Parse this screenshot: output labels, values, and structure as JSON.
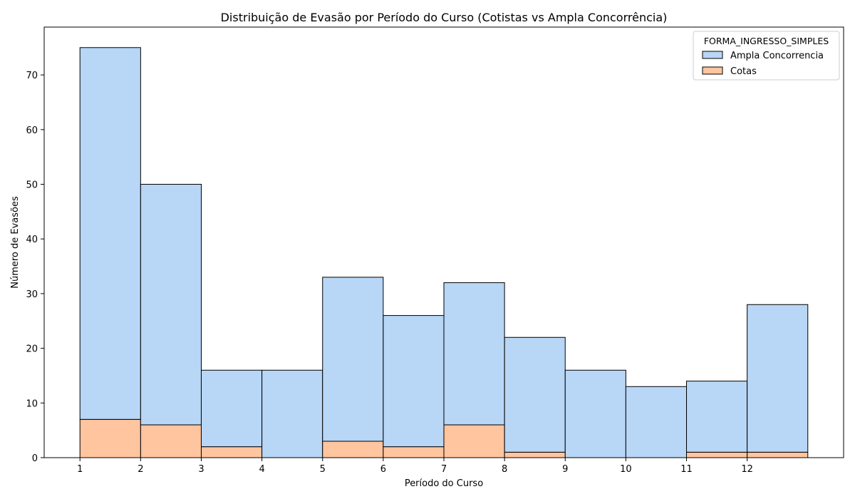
{
  "chart_data": {
    "type": "bar",
    "stacked": true,
    "title": "Distribuição de Evasão por Período do Curso (Cotistas vs Ampla Concorrência)",
    "xlabel": "Período do Curso",
    "ylabel": "Número de Evasões",
    "xlim": [
      0.41,
      13.59
    ],
    "ylim": [
      0,
      78.75
    ],
    "xticks": [
      1,
      2,
      3,
      4,
      5,
      6,
      7,
      8,
      9,
      10,
      11,
      12
    ],
    "yticks": [
      0,
      10,
      20,
      30,
      40,
      50,
      60,
      70
    ],
    "bin_edges": [
      1,
      2,
      3,
      4,
      5,
      6,
      7,
      8,
      9,
      10,
      11,
      12,
      13
    ],
    "grid": false,
    "legend": {
      "title": "FORMA_INGRESSO_SIMPLES",
      "placement": "top-right"
    },
    "series": [
      {
        "name": "Ampla Concorrencia",
        "color": "#b8d6f5",
        "values": [
          68,
          44,
          14,
          16,
          30,
          24,
          26,
          21,
          16,
          13,
          13,
          27
        ]
      },
      {
        "name": "Cotas",
        "color": "#ffc59f",
        "values": [
          7,
          6,
          2,
          0,
          3,
          2,
          6,
          1,
          0,
          0,
          1,
          1
        ]
      }
    ]
  }
}
